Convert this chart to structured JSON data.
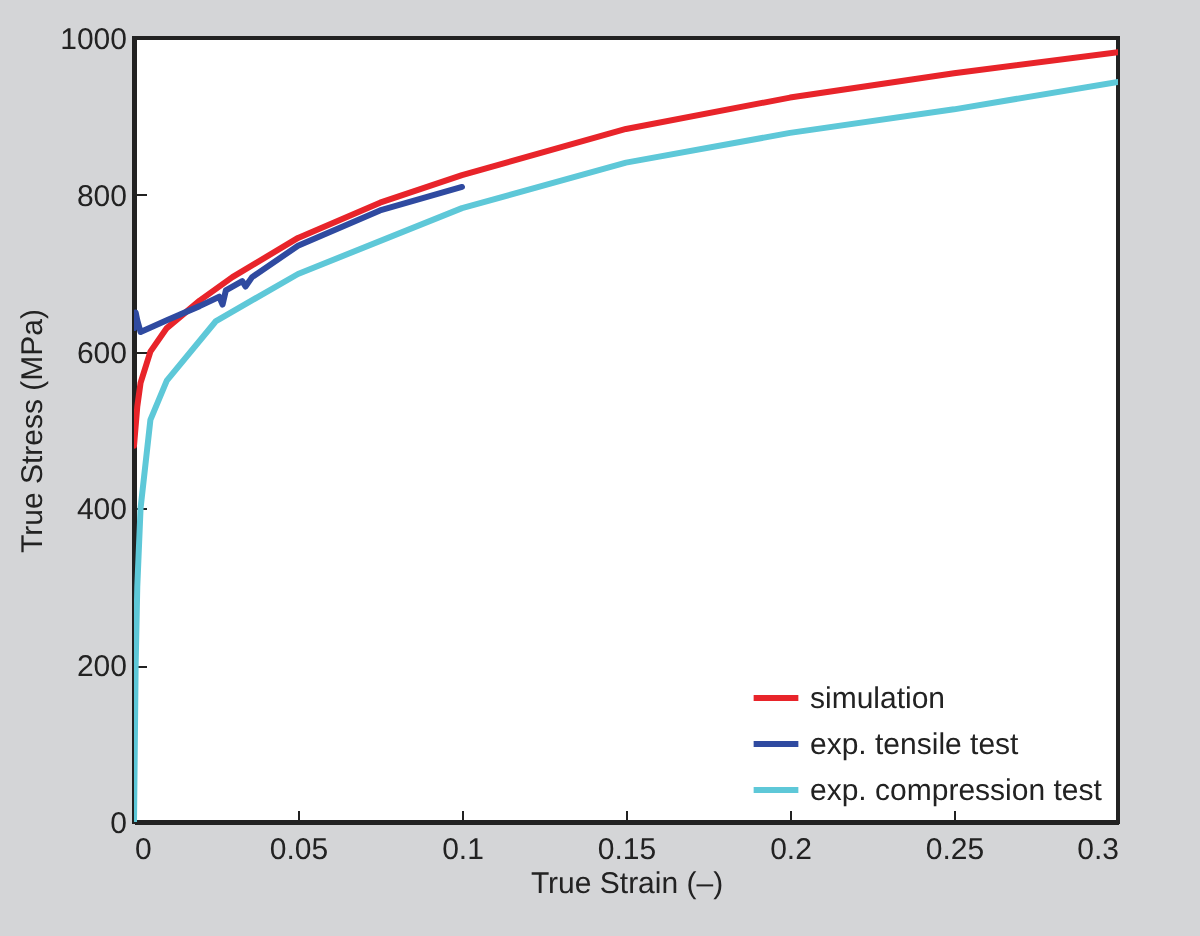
{
  "chart_data": {
    "type": "line",
    "xlabel": "True Strain (–)",
    "ylabel": "True Stress (MPa)",
    "xlim": [
      0,
      0.3
    ],
    "ylim": [
      0,
      1000
    ],
    "xticks": [
      0,
      0.05,
      0.1,
      0.15,
      0.2,
      0.25,
      0.3
    ],
    "yticks": [
      0,
      200,
      400,
      600,
      800,
      1000
    ],
    "legend": "bottom right",
    "grid": false,
    "series": [
      {
        "name": "simulation",
        "color": "#e8242a",
        "x": [
          0,
          0.001,
          0.002,
          0.005,
          0.01,
          0.02,
          0.03,
          0.05,
          0.075,
          0.1,
          0.15,
          0.2,
          0.25,
          0.3
        ],
        "values": [
          480,
          530,
          560,
          600,
          630,
          665,
          695,
          745,
          790,
          825,
          884,
          924,
          955,
          982
        ]
      },
      {
        "name": "exp. tensile test",
        "color": "#2f4aa0",
        "x": [
          0,
          0.0005,
          0.001,
          0.002,
          0.01,
          0.02,
          0.026,
          0.027,
          0.028,
          0.033,
          0.034,
          0.036,
          0.05,
          0.075,
          0.1
        ],
        "values": [
          630,
          650,
          640,
          625,
          640,
          658,
          670,
          660,
          678,
          690,
          683,
          695,
          735,
          780,
          810
        ]
      },
      {
        "name": "exp. compression test",
        "color": "#5ec8d8",
        "x": [
          0,
          0.0005,
          0.001,
          0.002,
          0.005,
          0.01,
          0.025,
          0.05,
          0.1,
          0.15,
          0.2,
          0.25,
          0.3
        ],
        "values": [
          0,
          200,
          300,
          400,
          513,
          563,
          639,
          699,
          783,
          841,
          879,
          909,
          944
        ]
      }
    ]
  }
}
